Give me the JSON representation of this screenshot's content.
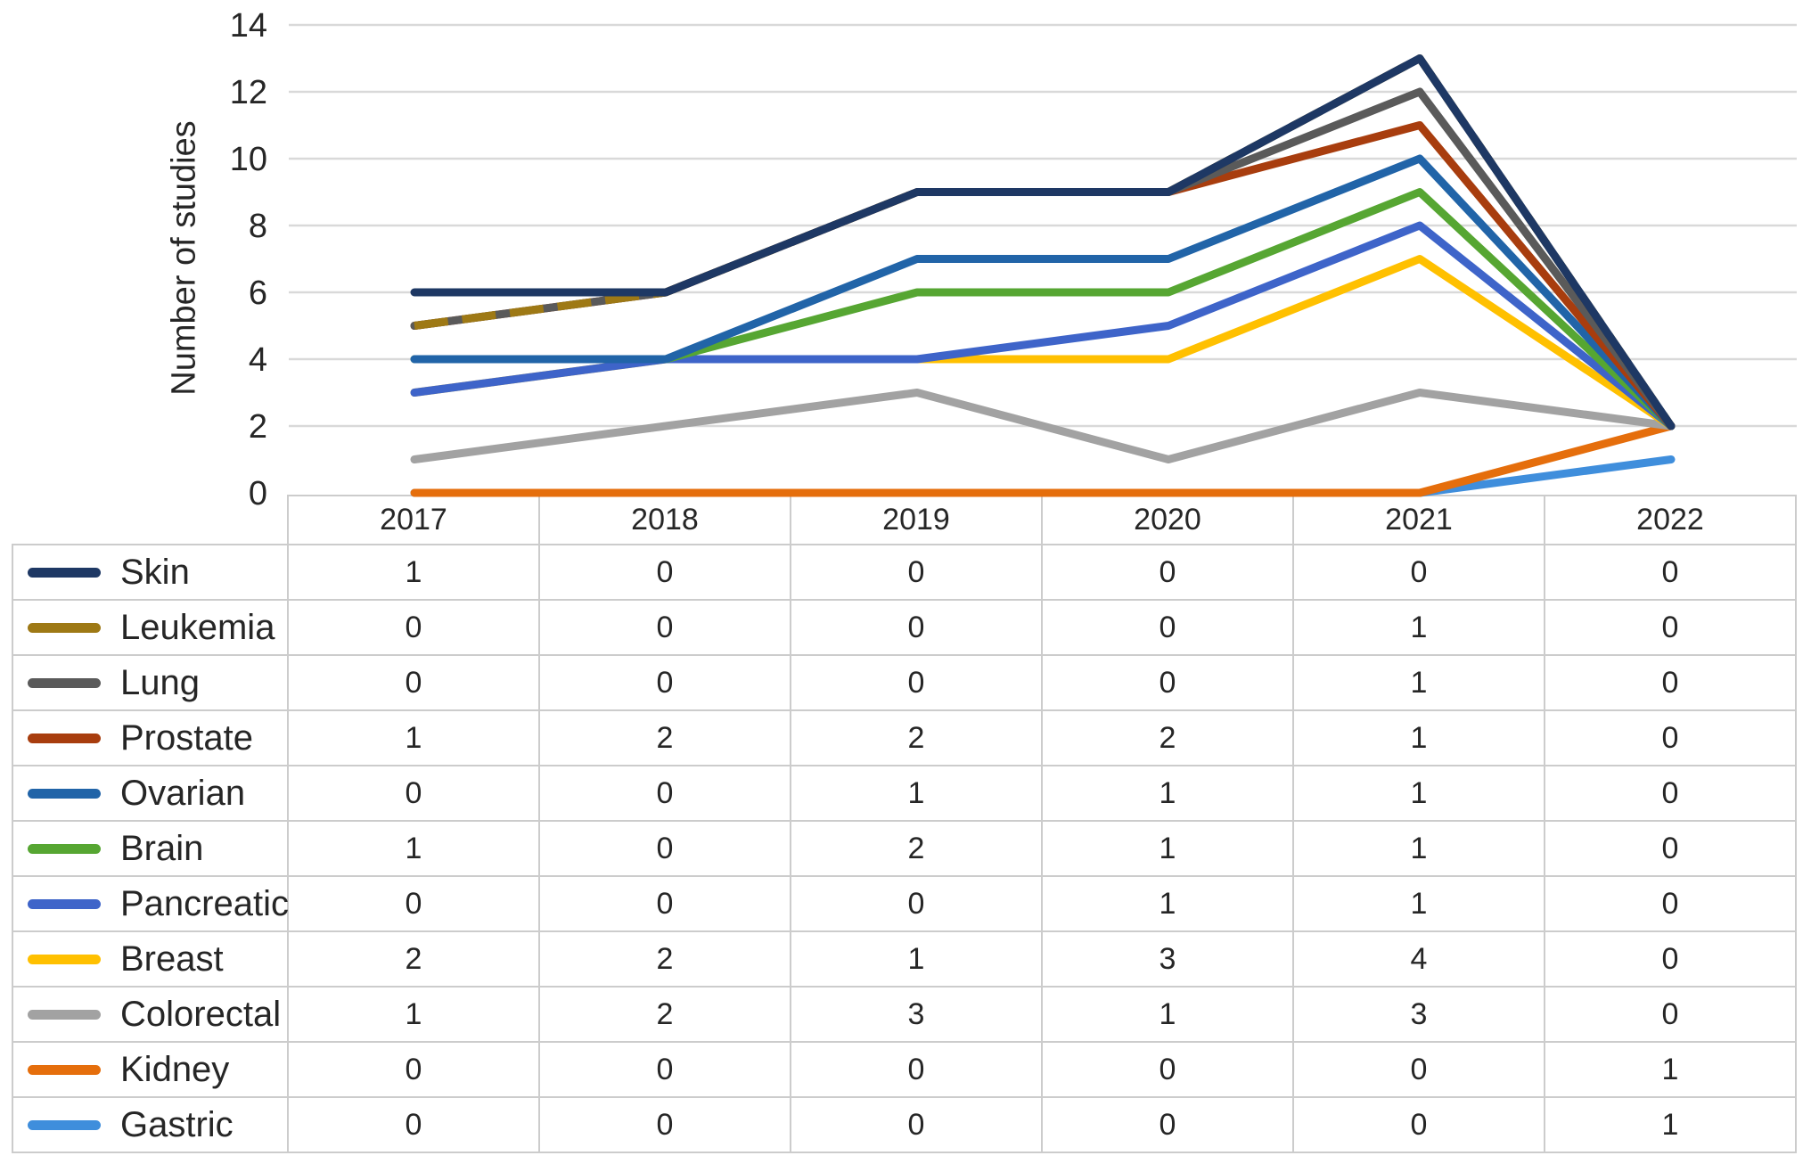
{
  "chart_data": {
    "type": "line",
    "variant": "stacked-line-with-data-table",
    "title": "",
    "ylabel": "Number of studies",
    "xlabel": "",
    "ylim": [
      0,
      14
    ],
    "ytick_step": 2,
    "grid": "horizontal",
    "legend_position": "table-left-column",
    "categories": [
      "2017",
      "2018",
      "2019",
      "2020",
      "2021",
      "2022"
    ],
    "series": [
      {
        "name": "Skin",
        "color": "#1E3864",
        "dashed": false,
        "values": [
          1,
          0,
          0,
          0,
          0,
          0
        ]
      },
      {
        "name": "Leukemia",
        "color": "#9E7915",
        "dashed": true,
        "values": [
          0,
          0,
          0,
          0,
          1,
          0
        ]
      },
      {
        "name": "Lung",
        "color": "#5A5A5A",
        "dashed": false,
        "values": [
          0,
          0,
          0,
          0,
          1,
          0
        ]
      },
      {
        "name": "Prostate",
        "color": "#A83D0E",
        "dashed": false,
        "values": [
          1,
          2,
          2,
          2,
          1,
          0
        ]
      },
      {
        "name": "Ovarian",
        "color": "#2164A8",
        "dashed": false,
        "values": [
          0,
          0,
          1,
          1,
          1,
          0
        ]
      },
      {
        "name": "Brain",
        "color": "#56A632",
        "dashed": false,
        "values": [
          1,
          0,
          2,
          1,
          1,
          0
        ]
      },
      {
        "name": "Pancreatic",
        "color": "#3E64C9",
        "dashed": false,
        "values": [
          0,
          0,
          0,
          1,
          1,
          0
        ]
      },
      {
        "name": "Breast",
        "color": "#FFC000",
        "dashed": false,
        "values": [
          2,
          2,
          1,
          3,
          4,
          0
        ]
      },
      {
        "name": "Colorectal",
        "color": "#A2A2A2",
        "dashed": false,
        "values": [
          1,
          2,
          3,
          1,
          3,
          0
        ]
      },
      {
        "name": "Kidney",
        "color": "#E56E0C",
        "dashed": false,
        "values": [
          0,
          0,
          0,
          0,
          0,
          1
        ]
      },
      {
        "name": "Gastric",
        "color": "#3F8EDC",
        "dashed": false,
        "values": [
          0,
          0,
          0,
          0,
          0,
          1
        ]
      }
    ],
    "stacking": "each line is cumulative: its own row plus all rows listed below it",
    "colors": {
      "gridline": "#D9D9D9",
      "table_border": "#CCCCCC",
      "text": "#262626"
    }
  }
}
